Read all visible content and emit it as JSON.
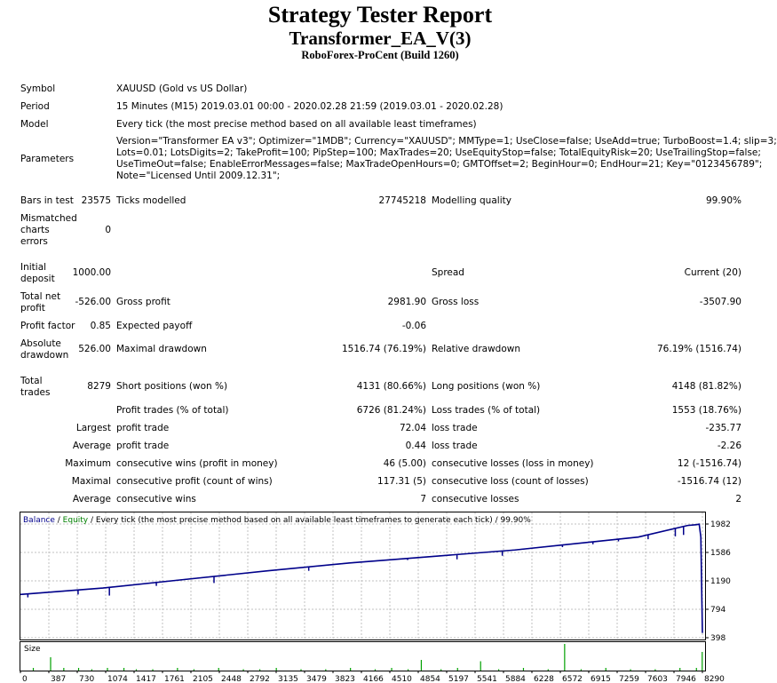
{
  "header": {
    "title": "Strategy Tester Report",
    "ea_name": "Transformer_EA_V(3)",
    "server": "RoboForex-ProCent (Build 1260)"
  },
  "info": {
    "symbol_label": "Symbol",
    "symbol": "XAUUSD (Gold vs US Dollar)",
    "period_label": "Period",
    "period": "15 Minutes (M15) 2019.03.01 00:00 - 2020.02.28 21:59 (2019.03.01 - 2020.02.28)",
    "model_label": "Model",
    "model": "Every tick (the most precise method based on all available least timeframes)",
    "parameters_label": "Parameters",
    "parameters": [
      "Version=\"Transformer EA v3\"; Optimizer=\"1MDB\"; Currency=\"XAUUSD\"; MMType=1; UseClose=false; UseAdd=true; TurboBoost=1.4; slip=3;",
      "Lots=0.01; LotsDigits=2; TakeProfit=100; PipStep=100; MaxTrades=20; UseEquityStop=false; TotalEquityRisk=20; UseTrailingStop=false;",
      "UseTimeOut=false; EnableErrorMessages=false; MaxTradeOpenHours=0; GMTOffset=2; BeginHour=0; EndHour=21; Key=\"0123456789\";",
      "Note=\"Licensed Until 2009.12.31\";"
    ]
  },
  "stats": {
    "bars_label": "Bars in test",
    "bars": "23575",
    "ticks_label": "Ticks modelled",
    "ticks": "27745218",
    "quality_label": "Modelling quality",
    "quality": "99.90%",
    "mismatch_label": "Mismatched charts errors",
    "mismatch": "0",
    "deposit_label": "Initial deposit",
    "deposit": "1000.00",
    "spread_label": "Spread",
    "spread": "Current (20)",
    "net_label": "Total net profit",
    "net": "-526.00",
    "gross_profit_label": "Gross profit",
    "gross_profit": "2981.90",
    "gross_loss_label": "Gross loss",
    "gross_loss": "-3507.90",
    "pf_label": "Profit factor",
    "pf": "0.85",
    "payoff_label": "Expected payoff",
    "payoff": "-0.06",
    "abs_dd_label": "Absolute drawdown",
    "abs_dd": "526.00",
    "max_dd_label": "Maximal drawdown",
    "max_dd": "1516.74 (76.19%)",
    "rel_dd_label": "Relative drawdown",
    "rel_dd": "76.19% (1516.74)",
    "total_trades_label": "Total trades",
    "total_trades": "8279",
    "short_label": "Short positions (won %)",
    "short": "4131 (80.66%)",
    "long_label": "Long positions (won %)",
    "long": "4148 (81.82%)",
    "profit_trades_label": "Profit trades (% of total)",
    "profit_trades": "6726 (81.24%)",
    "loss_trades_label": "Loss trades (% of total)",
    "loss_trades": "1553 (18.76%)",
    "largest_label": "Largest",
    "largest_profit_label": "profit trade",
    "largest_profit": "72.04",
    "largest_loss_label": "loss trade",
    "largest_loss": "-235.77",
    "average_label": "Average",
    "avg_profit_label": "profit trade",
    "avg_profit": "0.44",
    "avg_loss_label": "loss trade",
    "avg_loss": "-2.26",
    "maximum_label": "Maximum",
    "max_cons_wins_label": "consecutive wins (profit in money)",
    "max_cons_wins": "46 (5.00)",
    "max_cons_losses_label": "consecutive losses (loss in money)",
    "max_cons_losses": "12 (-1516.74)",
    "maximal_label": "Maximal",
    "maximal_cons_profit_label": "consecutive profit (count of wins)",
    "maximal_cons_profit": "117.31 (5)",
    "maximal_cons_loss_label": "consecutive loss (count of losses)",
    "maximal_cons_loss": "-1516.74 (12)",
    "average2_label": "Average",
    "avg_cons_wins_label": "consecutive wins",
    "avg_cons_wins": "7",
    "avg_cons_losses_label": "consecutive losses",
    "avg_cons_losses": "2"
  },
  "chart_legend": {
    "balance": "Balance",
    "sep1": " / ",
    "equity": "Equity",
    "sep2": " / ",
    "text": "Every tick (the most precise method based on all available least timeframes to generate each tick) / 99.90%"
  },
  "size_label": "Size",
  "colors": {
    "balance": "#00008b",
    "equity": "#008000",
    "grid": "#c0c0c0",
    "size_bars": "#00a000"
  },
  "chart_data": {
    "type": "line",
    "title": "",
    "xlabel": "",
    "ylabel": "",
    "x_ticks": [
      "0",
      "387",
      "730",
      "1074",
      "1417",
      "1761",
      "2105",
      "2448",
      "2792",
      "3135",
      "3479",
      "3823",
      "4166",
      "4510",
      "4854",
      "5197",
      "5541",
      "5884",
      "6228",
      "6572",
      "6915",
      "7259",
      "7603",
      "7946",
      "8290"
    ],
    "y_ticks": [
      "1982",
      "1586",
      "1190",
      "794",
      "398"
    ],
    "ylim": [
      398,
      1982
    ],
    "xlim": [
      0,
      8279
    ],
    "series": [
      {
        "name": "Balance",
        "x": [
          0,
          1000,
          2000,
          3000,
          4000,
          5000,
          6000,
          7000,
          7500,
          8100,
          8200,
          8240,
          8260,
          8279
        ],
        "y": [
          1000,
          1090,
          1210,
          1330,
          1440,
          1530,
          1620,
          1740,
          1800,
          1962,
          1972,
          1980,
          1800,
          465
        ]
      },
      {
        "name": "Equity",
        "x": [
          0,
          1000,
          2000,
          3000,
          4000,
          5000,
          6000,
          7000,
          7500,
          8100,
          8200,
          8240,
          8260,
          8279
        ],
        "y": [
          1000,
          1090,
          1210,
          1330,
          1440,
          1530,
          1620,
          1740,
          1800,
          1962,
          1972,
          1980,
          1800,
          465
        ]
      }
    ],
    "equity_dips": [
      {
        "x": 90,
        "y": 960
      },
      {
        "x": 700,
        "y": 1000
      },
      {
        "x": 1080,
        "y": 985
      },
      {
        "x": 1650,
        "y": 1120
      },
      {
        "x": 2350,
        "y": 1160
      },
      {
        "x": 3500,
        "y": 1330
      },
      {
        "x": 4700,
        "y": 1480
      },
      {
        "x": 5300,
        "y": 1490
      },
      {
        "x": 5850,
        "y": 1540
      },
      {
        "x": 6580,
        "y": 1660
      },
      {
        "x": 6950,
        "y": 1700
      },
      {
        "x": 7260,
        "y": 1740
      },
      {
        "x": 7620,
        "y": 1770
      },
      {
        "x": 7950,
        "y": 1810
      },
      {
        "x": 8050,
        "y": 1830
      }
    ],
    "size_series": {
      "name": "Size",
      "x": [
        150,
        360,
        520,
        700,
        860,
        1050,
        1250,
        1400,
        1600,
        1900,
        2100,
        2400,
        2700,
        2900,
        3100,
        3400,
        3700,
        4000,
        4300,
        4500,
        4700,
        4860,
        5100,
        5300,
        5580,
        5800,
        6100,
        6400,
        6600,
        6800,
        7100,
        7400,
        7700,
        8000,
        8200,
        8270
      ],
      "values": [
        0.1,
        0.5,
        0.1,
        0.1,
        0.05,
        0.1,
        0.1,
        0.05,
        0.05,
        0.1,
        0.05,
        0.1,
        0.05,
        0.05,
        0.1,
        0.05,
        0.05,
        0.1,
        0.05,
        0.1,
        0.05,
        0.4,
        0.05,
        0.1,
        0.35,
        0.05,
        0.1,
        0.05,
        1.0,
        0.05,
        0.1,
        0.05,
        0.05,
        0.1,
        0.1,
        0.7
      ]
    }
  }
}
